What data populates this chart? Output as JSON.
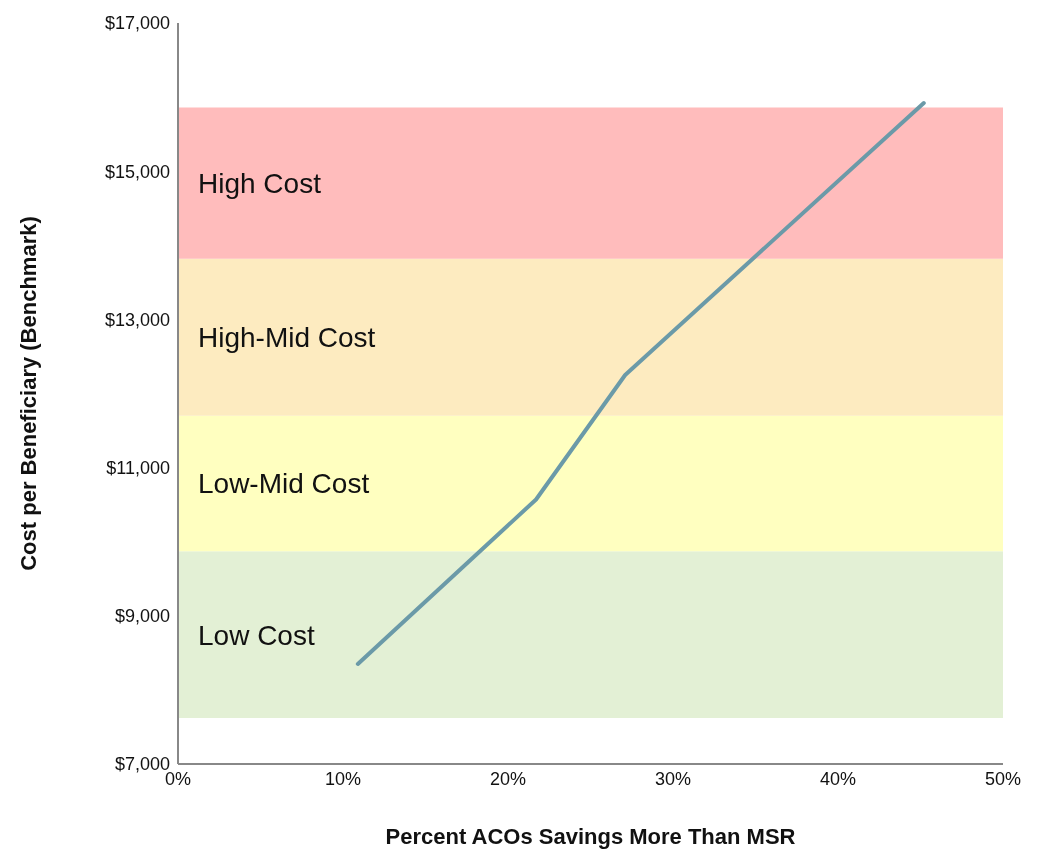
{
  "chart_data": {
    "type": "line",
    "xlabel": "Percent ACOs Savings More Than MSR",
    "ylabel": "Cost per Beneficiary (Benchmark)",
    "x": [
      10.9,
      21.7,
      27.1,
      45.2
    ],
    "series": [
      {
        "color": "#6b9aa8",
        "values": [
          8350,
          10570,
          12250,
          15920
        ]
      }
    ],
    "xlim": [
      0,
      50
    ],
    "ylim": [
      7000,
      17000
    ],
    "xticks": [
      {
        "value": 0,
        "label": "0%"
      },
      {
        "value": 10,
        "label": "10%"
      },
      {
        "value": 20,
        "label": "20%"
      },
      {
        "value": 30,
        "label": "30%"
      },
      {
        "value": 40,
        "label": "40%"
      },
      {
        "value": 50,
        "label": "50%"
      }
    ],
    "yticks": [
      {
        "value": 7000,
        "label": "$7,000"
      },
      {
        "value": 9000,
        "label": "$9,000"
      },
      {
        "value": 11000,
        "label": "$11,000"
      },
      {
        "value": 13000,
        "label": "$13,000"
      },
      {
        "value": 15000,
        "label": "$15,000"
      },
      {
        "value": 17000,
        "label": "$17,000"
      }
    ],
    "bands": [
      {
        "axis": "y",
        "from": 7620,
        "to": 9870,
        "label": "Low Cost",
        "color": "#e3f0d5"
      },
      {
        "axis": "y",
        "from": 9870,
        "to": 11700,
        "label": "Low-Mid Cost",
        "color": "#ffffc0"
      },
      {
        "axis": "y",
        "from": 11700,
        "to": 13820,
        "label": "High-Mid Cost",
        "color": "#fdebc0"
      },
      {
        "axis": "y",
        "from": 13820,
        "to": 15860,
        "label": "High Cost",
        "color": "#ffbcbc"
      }
    ],
    "grid": false,
    "legend": false,
    "marker": "none",
    "line_style": "solid"
  }
}
